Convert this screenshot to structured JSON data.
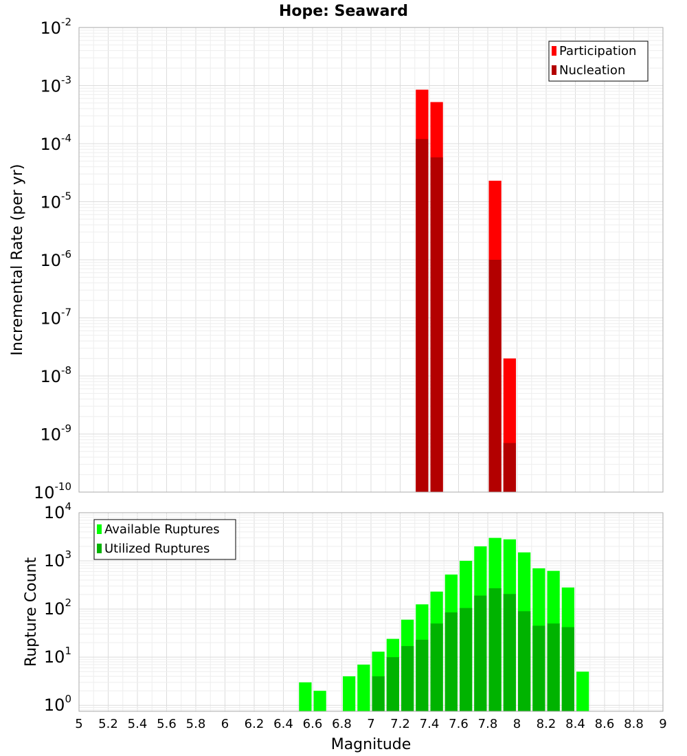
{
  "chart_data": [
    {
      "type": "bar",
      "title": "Hope: Seaward",
      "xlabel": "Magnitude",
      "ylabel": "Incremental Rate (per yr)",
      "xlim": [
        5,
        9
      ],
      "ylim": [
        1e-10,
        0.01
      ],
      "yscale": "log",
      "bin_width": 0.1,
      "grid": true,
      "legend": "top-right",
      "y_tick_exponents": [
        "-2",
        "-3",
        "-4",
        "-5",
        "-6",
        "-7",
        "-8",
        "-9",
        "-10"
      ],
      "series": [
        {
          "name": "Participation",
          "color": "#ff0000",
          "x": [
            7.35,
            7.45,
            7.85,
            7.95
          ],
          "values": [
            0.00085,
            0.00052,
            2.3e-05,
            2e-08
          ]
        },
        {
          "name": "Nucleation",
          "color": "#b30000",
          "x": [
            7.35,
            7.45,
            7.85,
            7.95
          ],
          "values": [
            0.00012,
            5.8e-05,
            1e-06,
            7e-10
          ]
        }
      ]
    },
    {
      "type": "bar",
      "xlabel": "Magnitude",
      "ylabel": "Rupture Count",
      "xlim": [
        5,
        9
      ],
      "ylim": [
        0.75,
        10000
      ],
      "yscale": "log",
      "bin_width": 0.1,
      "grid": true,
      "legend": "top-left",
      "y_tick_exponents": [
        "4",
        "3",
        "2",
        "1",
        "0"
      ],
      "series": [
        {
          "name": "Available Ruptures",
          "color": "#00ff00",
          "x": [
            6.55,
            6.65,
            6.85,
            6.95,
            7.05,
            7.15,
            7.25,
            7.35,
            7.45,
            7.55,
            7.65,
            7.75,
            7.85,
            7.95,
            8.05,
            8.15,
            8.25,
            8.35,
            8.45
          ],
          "values": [
            3,
            2,
            4,
            7,
            13,
            24,
            60,
            125,
            230,
            520,
            1000,
            2000,
            3000,
            2800,
            1500,
            700,
            620,
            280,
            5
          ]
        },
        {
          "name": "Utilized Ruptures",
          "color": "#00b300",
          "x": [
            7.05,
            7.15,
            7.25,
            7.35,
            7.45,
            7.55,
            7.65,
            7.75,
            7.85,
            7.95,
            8.05,
            8.15,
            8.25,
            8.35
          ],
          "values": [
            4,
            10,
            17,
            23,
            50,
            85,
            105,
            190,
            270,
            205,
            90,
            45,
            50,
            42
          ]
        }
      ]
    }
  ],
  "x_ticks": [
    "5",
    "5.2",
    "5.4",
    "5.6",
    "5.8",
    "6",
    "6.2",
    "6.4",
    "6.6",
    "6.8",
    "7",
    "7.2",
    "7.4",
    "7.6",
    "7.8",
    "8",
    "8.2",
    "8.4",
    "8.6",
    "8.8",
    "9"
  ],
  "y_tick_base": "10"
}
